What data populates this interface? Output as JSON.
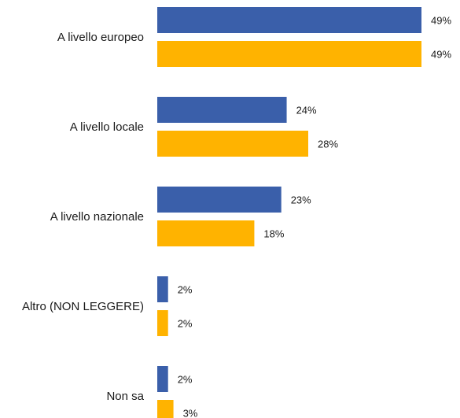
{
  "chart_data": {
    "type": "bar",
    "orientation": "horizontal",
    "categories": [
      "A livello europeo",
      "A livello locale",
      "A livello nazionale",
      "Altro (NON LEGGERE)",
      "Non sa"
    ],
    "series": [
      {
        "values": [
          49,
          24,
          23,
          2,
          2
        ],
        "color": "#3a5faa"
      },
      {
        "values": [
          49,
          28,
          18,
          2,
          3
        ],
        "color": "#ffb300"
      }
    ],
    "value_suffix": "%",
    "title": "",
    "xlabel": "",
    "ylabel": "",
    "xlim": [
      0,
      49
    ],
    "grid": false,
    "legend": "none"
  }
}
